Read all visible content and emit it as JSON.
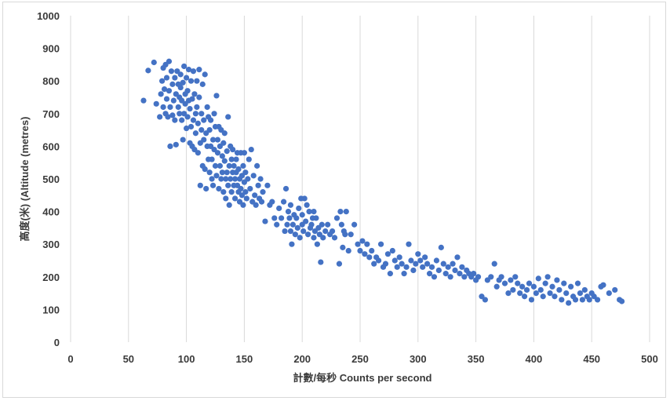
{
  "chart_data": {
    "type": "scatter",
    "xlabel": "計數/每秒 Counts per second",
    "ylabel": "高度(米) (Altitude (metres)",
    "xlim": [
      0,
      500
    ],
    "ylim": [
      0,
      1000
    ],
    "x_ticks": [
      "0",
      "50",
      "100",
      "150",
      "200",
      "250",
      "300",
      "350",
      "400",
      "450",
      "500"
    ],
    "y_ticks": [
      "0",
      "100",
      "200",
      "300",
      "400",
      "500",
      "600",
      "700",
      "800",
      "900",
      "1000"
    ],
    "grid": "vertical",
    "legend": "none",
    "marker_color": "#4472C4",
    "series": [
      {
        "points": [
          [
            63,
            740
          ],
          [
            67,
            832
          ],
          [
            72,
            857
          ],
          [
            74,
            730
          ],
          [
            77,
            690
          ],
          [
            78,
            760
          ],
          [
            79,
            800
          ],
          [
            80,
            720
          ],
          [
            80,
            840
          ],
          [
            81,
            775
          ],
          [
            82,
            700
          ],
          [
            82,
            850
          ],
          [
            83,
            745
          ],
          [
            83,
            810
          ],
          [
            84,
            690
          ],
          [
            85,
            770
          ],
          [
            85,
            860
          ],
          [
            86,
            600
          ],
          [
            86,
            720
          ],
          [
            87,
            830
          ],
          [
            88,
            695
          ],
          [
            88,
            790
          ],
          [
            89,
            740
          ],
          [
            90,
            680
          ],
          [
            90,
            810
          ],
          [
            91,
            760
          ],
          [
            91,
            605
          ],
          [
            92,
            830
          ],
          [
            93,
            720
          ],
          [
            93,
            790
          ],
          [
            94,
            700
          ],
          [
            94,
            750
          ],
          [
            95,
            820
          ],
          [
            95,
            780
          ],
          [
            96,
            680
          ],
          [
            96,
            740
          ],
          [
            97,
            620
          ],
          [
            97,
            795
          ],
          [
            98,
            845
          ],
          [
            98,
            700
          ],
          [
            99,
            760
          ],
          [
            99,
            730
          ],
          [
            100,
            810
          ],
          [
            100,
            655
          ],
          [
            101,
            690
          ],
          [
            101,
            770
          ],
          [
            102,
            740
          ],
          [
            102,
            835
          ],
          [
            103,
            610
          ],
          [
            103,
            715
          ],
          [
            104,
            660
          ],
          [
            104,
            800
          ],
          [
            105,
            600
          ],
          [
            105,
            745
          ],
          [
            106,
            680
          ],
          [
            106,
            830
          ],
          [
            107,
            590
          ],
          [
            107,
            760
          ],
          [
            108,
            700
          ],
          [
            108,
            640
          ],
          [
            109,
            800
          ],
          [
            109,
            720
          ],
          [
            110,
            580
          ],
          [
            110,
            670
          ],
          [
            111,
            835
          ],
          [
            111,
            750
          ],
          [
            112,
            480
          ],
          [
            112,
            610
          ],
          [
            113,
            700
          ],
          [
            113,
            650
          ],
          [
            114,
            540
          ],
          [
            114,
            790
          ],
          [
            115,
            620
          ],
          [
            115,
            680
          ],
          [
            116,
            820
          ],
          [
            116,
            530
          ],
          [
            117,
            470
          ],
          [
            117,
            640
          ],
          [
            118,
            720
          ],
          [
            118,
            600
          ],
          [
            119,
            560
          ],
          [
            119,
            690
          ],
          [
            120,
            520
          ],
          [
            120,
            650
          ],
          [
            121,
            600
          ],
          [
            121,
            680
          ],
          [
            122,
            500
          ],
          [
            122,
            560
          ],
          [
            123,
            620
          ],
          [
            123,
            480
          ],
          [
            124,
            700
          ],
          [
            124,
            590
          ],
          [
            125,
            540
          ],
          [
            125,
            660
          ],
          [
            126,
            755
          ],
          [
            126,
            510
          ],
          [
            127,
            620
          ],
          [
            127,
            580
          ],
          [
            128,
            470
          ],
          [
            128,
            660
          ],
          [
            129,
            540
          ],
          [
            129,
            600
          ],
          [
            130,
            500
          ],
          [
            130,
            650
          ],
          [
            131,
            520
          ],
          [
            131,
            570
          ],
          [
            132,
            460
          ],
          [
            132,
            610
          ],
          [
            133,
            555
          ],
          [
            133,
            640
          ],
          [
            134,
            500
          ],
          [
            134,
            440
          ],
          [
            135,
            585
          ],
          [
            135,
            520
          ],
          [
            136,
            690
          ],
          [
            136,
            480
          ],
          [
            137,
            540
          ],
          [
            137,
            420
          ],
          [
            138,
            600
          ],
          [
            138,
            500
          ],
          [
            139,
            560
          ],
          [
            139,
            460
          ],
          [
            140,
            520
          ],
          [
            140,
            590
          ],
          [
            141,
            480
          ],
          [
            141,
            540
          ],
          [
            142,
            500
          ],
          [
            142,
            440
          ],
          [
            143,
            560
          ],
          [
            143,
            520
          ],
          [
            144,
            480
          ],
          [
            144,
            580
          ],
          [
            145,
            460
          ],
          [
            145,
            530
          ],
          [
            146,
            500
          ],
          [
            146,
            430
          ],
          [
            147,
            580
          ],
          [
            147,
            470
          ],
          [
            148,
            510
          ],
          [
            148,
            450
          ],
          [
            149,
            540
          ],
          [
            149,
            420
          ],
          [
            150,
            580
          ],
          [
            150,
            490
          ],
          [
            151,
            460
          ],
          [
            151,
            520
          ],
          [
            152,
            440
          ],
          [
            153,
            500
          ],
          [
            154,
            560
          ],
          [
            155,
            470
          ],
          [
            156,
            590
          ],
          [
            157,
            430
          ],
          [
            158,
            510
          ],
          [
            159,
            450
          ],
          [
            160,
            420
          ],
          [
            161,
            540
          ],
          [
            162,
            480
          ],
          [
            163,
            440
          ],
          [
            164,
            500
          ],
          [
            165,
            430
          ],
          [
            166,
            460
          ],
          [
            168,
            370
          ],
          [
            170,
            480
          ],
          [
            172,
            420
          ],
          [
            174,
            430
          ],
          [
            176,
            380
          ],
          [
            178,
            360
          ],
          [
            180,
            410
          ],
          [
            182,
            380
          ],
          [
            184,
            430
          ],
          [
            185,
            340
          ],
          [
            186,
            470
          ],
          [
            187,
            360
          ],
          [
            188,
            400
          ],
          [
            189,
            380
          ],
          [
            190,
            340
          ],
          [
            190,
            420
          ],
          [
            191,
            300
          ],
          [
            192,
            360
          ],
          [
            193,
            390
          ],
          [
            194,
            330
          ],
          [
            195,
            380
          ],
          [
            196,
            350
          ],
          [
            197,
            410
          ],
          [
            198,
            320
          ],
          [
            199,
            440
          ],
          [
            200,
            360
          ],
          [
            200,
            390
          ],
          [
            201,
            340
          ],
          [
            202,
            440
          ],
          [
            203,
            370
          ],
          [
            204,
            420
          ],
          [
            205,
            330
          ],
          [
            206,
            400
          ],
          [
            207,
            350
          ],
          [
            208,
            360
          ],
          [
            209,
            380
          ],
          [
            210,
            320
          ],
          [
            210,
            400
          ],
          [
            211,
            340
          ],
          [
            212,
            380
          ],
          [
            213,
            300
          ],
          [
            214,
            350
          ],
          [
            215,
            330
          ],
          [
            216,
            245
          ],
          [
            217,
            360
          ],
          [
            218,
            320
          ],
          [
            220,
            340
          ],
          [
            222,
            360
          ],
          [
            224,
            330
          ],
          [
            226,
            340
          ],
          [
            228,
            320
          ],
          [
            230,
            380
          ],
          [
            232,
            240
          ],
          [
            233,
            400
          ],
          [
            234,
            360
          ],
          [
            235,
            290
          ],
          [
            236,
            340
          ],
          [
            237,
            330
          ],
          [
            238,
            400
          ],
          [
            240,
            280
          ],
          [
            242,
            330
          ],
          [
            245,
            360
          ],
          [
            248,
            300
          ],
          [
            250,
            280
          ],
          [
            252,
            310
          ],
          [
            254,
            270
          ],
          [
            256,
            300
          ],
          [
            258,
            260
          ],
          [
            260,
            280
          ],
          [
            262,
            240
          ],
          [
            264,
            260
          ],
          [
            266,
            250
          ],
          [
            268,
            300
          ],
          [
            270,
            230
          ],
          [
            272,
            240
          ],
          [
            274,
            270
          ],
          [
            276,
            210
          ],
          [
            278,
            280
          ],
          [
            280,
            250
          ],
          [
            282,
            230
          ],
          [
            284,
            260
          ],
          [
            286,
            240
          ],
          [
            288,
            210
          ],
          [
            290,
            230
          ],
          [
            292,
            300
          ],
          [
            294,
            250
          ],
          [
            296,
            220
          ],
          [
            298,
            240
          ],
          [
            300,
            270
          ],
          [
            302,
            250
          ],
          [
            304,
            230
          ],
          [
            306,
            260
          ],
          [
            308,
            240
          ],
          [
            310,
            210
          ],
          [
            312,
            230
          ],
          [
            314,
            200
          ],
          [
            316,
            250
          ],
          [
            318,
            220
          ],
          [
            320,
            290
          ],
          [
            322,
            240
          ],
          [
            324,
            210
          ],
          [
            326,
            230
          ],
          [
            328,
            200
          ],
          [
            330,
            240
          ],
          [
            332,
            220
          ],
          [
            334,
            260
          ],
          [
            336,
            210
          ],
          [
            338,
            230
          ],
          [
            340,
            200
          ],
          [
            342,
            220
          ],
          [
            344,
            210
          ],
          [
            346,
            200
          ],
          [
            348,
            210
          ],
          [
            350,
            190
          ],
          [
            352,
            200
          ],
          [
            355,
            140
          ],
          [
            358,
            130
          ],
          [
            360,
            190
          ],
          [
            363,
            200
          ],
          [
            366,
            240
          ],
          [
            368,
            170
          ],
          [
            370,
            190
          ],
          [
            372,
            200
          ],
          [
            375,
            180
          ],
          [
            378,
            150
          ],
          [
            380,
            190
          ],
          [
            382,
            160
          ],
          [
            384,
            200
          ],
          [
            386,
            180
          ],
          [
            388,
            150
          ],
          [
            390,
            170
          ],
          [
            392,
            140
          ],
          [
            394,
            160
          ],
          [
            396,
            180
          ],
          [
            398,
            130
          ],
          [
            400,
            170
          ],
          [
            402,
            150
          ],
          [
            404,
            195
          ],
          [
            406,
            160
          ],
          [
            408,
            140
          ],
          [
            410,
            180
          ],
          [
            412,
            200
          ],
          [
            414,
            150
          ],
          [
            416,
            170
          ],
          [
            418,
            140
          ],
          [
            420,
            190
          ],
          [
            422,
            160
          ],
          [
            424,
            130
          ],
          [
            426,
            180
          ],
          [
            428,
            150
          ],
          [
            430,
            120
          ],
          [
            432,
            170
          ],
          [
            434,
            140
          ],
          [
            436,
            130
          ],
          [
            438,
            180
          ],
          [
            440,
            150
          ],
          [
            442,
            130
          ],
          [
            444,
            160
          ],
          [
            446,
            140
          ],
          [
            448,
            130
          ],
          [
            450,
            150
          ],
          [
            452,
            140
          ],
          [
            455,
            130
          ],
          [
            458,
            170
          ],
          [
            460,
            175
          ],
          [
            465,
            150
          ],
          [
            470,
            160
          ],
          [
            474,
            130
          ],
          [
            476,
            125
          ]
        ]
      }
    ]
  }
}
